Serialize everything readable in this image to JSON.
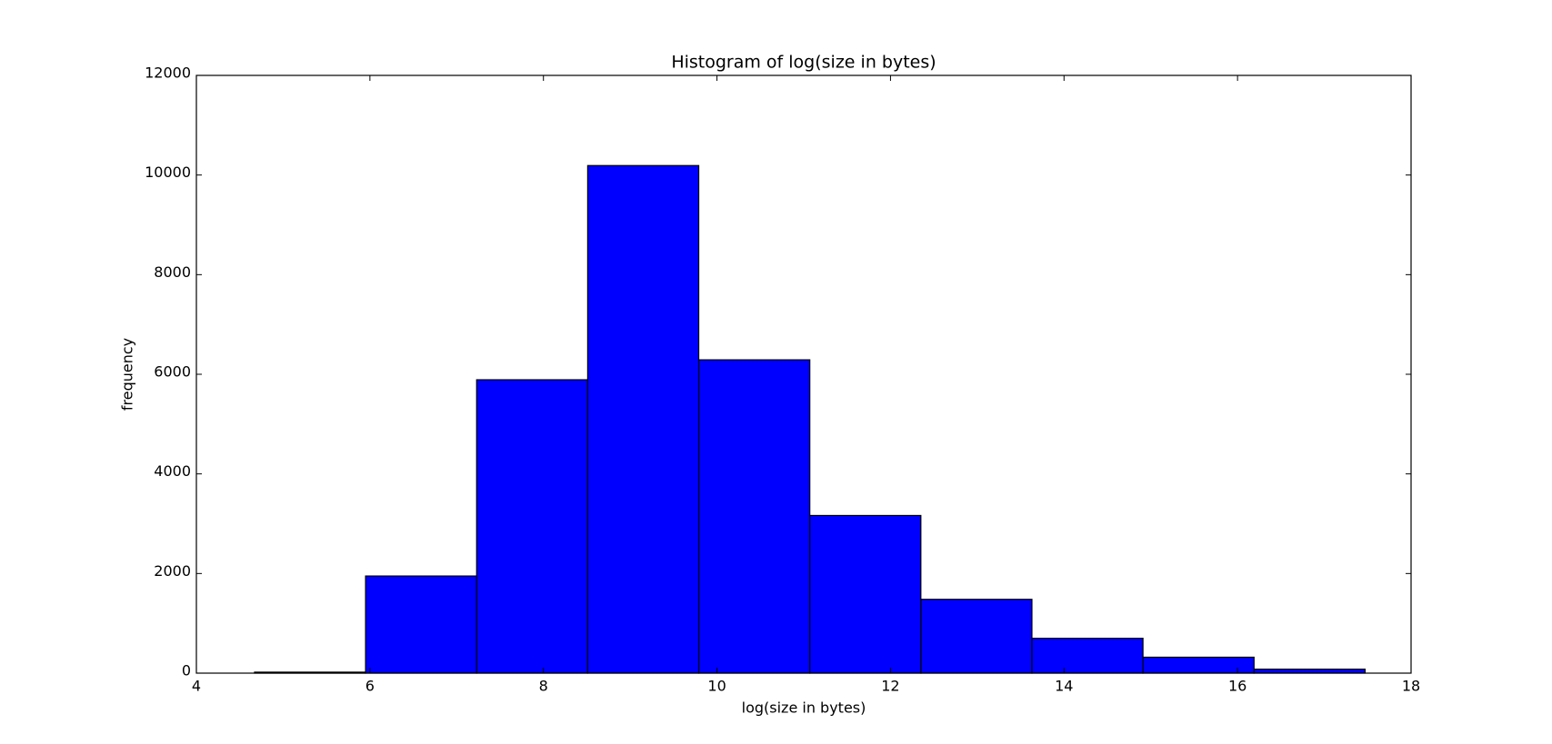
{
  "chart_data": {
    "type": "histogram",
    "title": "Histogram of log(size in bytes)",
    "x_label": "log(size in bytes)",
    "y_label": "frequency",
    "bins": [
      4.67,
      5.95,
      7.23,
      8.51,
      9.79,
      11.07,
      12.35,
      13.63,
      14.91,
      16.19,
      17.47
    ],
    "values": [
      20,
      1950,
      5890,
      10190,
      6290,
      3165,
      1482,
      700,
      320,
      80
    ],
    "color": "#0000ff",
    "xlim": [
      4,
      18
    ],
    "xticks": [
      4,
      6,
      8,
      10,
      12,
      14,
      16,
      18
    ],
    "ylim": [
      0,
      12000
    ],
    "yticks": [
      0,
      2000,
      4000,
      6000,
      8000,
      10000,
      12000
    ]
  }
}
